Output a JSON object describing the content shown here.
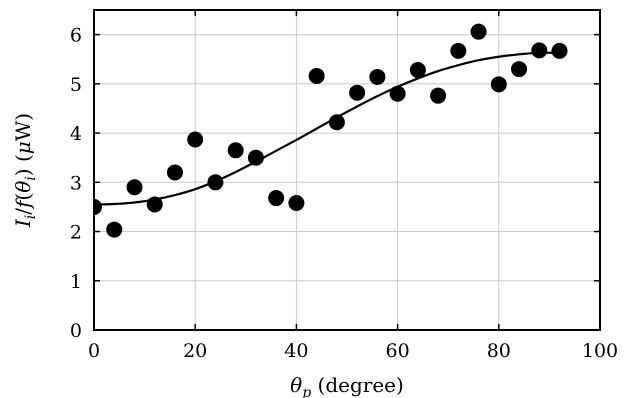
{
  "chart_data": {
    "type": "scatter",
    "title": "",
    "xlabel": {
      "symbol": "θ",
      "sub": "p",
      "rest": " (degree)"
    },
    "ylabel": {
      "parts": [
        {
          "t": "I",
          "italic": true
        },
        {
          "t": "i",
          "italic": true,
          "sub": true
        },
        {
          "t": "/",
          "italic": false
        },
        {
          "t": "f",
          "italic": true
        },
        {
          "t": "(",
          "italic": false
        },
        {
          "t": "θ",
          "italic": true
        },
        {
          "t": "i",
          "italic": true,
          "sub": true
        },
        {
          "t": ") (",
          "italic": false
        },
        {
          "t": "μ",
          "italic": true
        },
        {
          "t": "W)",
          "italic": false
        }
      ]
    },
    "xlim": [
      0,
      100
    ],
    "ylim": [
      0,
      6.5
    ],
    "xticks": [
      0,
      20,
      40,
      60,
      80,
      100
    ],
    "yticks": [
      0,
      1,
      2,
      3,
      4,
      5,
      6
    ],
    "grid": true,
    "series": [
      {
        "kind": "points",
        "x": [
          0,
          4,
          8,
          12,
          16,
          20,
          24,
          28,
          32,
          36,
          40,
          44,
          48,
          52,
          56,
          60,
          64,
          68,
          72,
          76,
          80,
          84,
          88,
          92
        ],
        "y": [
          2.5,
          2.04,
          2.9,
          2.55,
          3.2,
          3.87,
          3.0,
          3.65,
          3.5,
          2.68,
          2.58,
          5.16,
          4.22,
          4.82,
          5.14,
          4.8,
          5.28,
          4.76,
          5.67,
          6.06,
          4.99,
          5.3,
          5.68,
          5.67
        ],
        "color": "#000000"
      },
      {
        "kind": "curve",
        "x": [
          0,
          4,
          8,
          12,
          16,
          20,
          24,
          28,
          32,
          36,
          40,
          44,
          48,
          52,
          56,
          60,
          64,
          68,
          72,
          76,
          80,
          84,
          88,
          92
        ],
        "y": [
          2.55,
          2.56,
          2.59,
          2.65,
          2.74,
          2.86,
          3.02,
          3.21,
          3.42,
          3.64,
          3.86,
          4.09,
          4.32,
          4.54,
          4.75,
          4.94,
          5.11,
          5.26,
          5.38,
          5.48,
          5.55,
          5.6,
          5.63,
          5.63
        ],
        "color": "#000000"
      }
    ]
  }
}
